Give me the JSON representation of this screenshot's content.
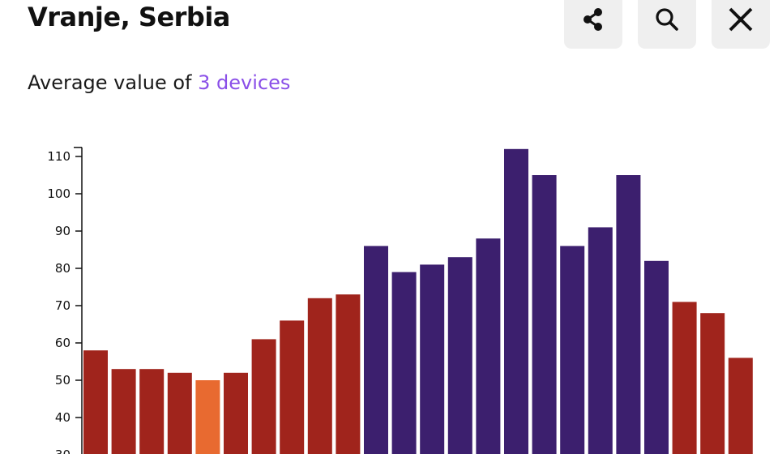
{
  "header": {
    "title": "Vranje, Serbia",
    "subtitle_prefix": "Average value of ",
    "devices_link": "3 devices"
  },
  "actions": [
    {
      "name": "share-button",
      "icon": "share-icon"
    },
    {
      "name": "search-button",
      "icon": "search-icon"
    },
    {
      "name": "close-button",
      "icon": "close-icon"
    }
  ],
  "colors": {
    "purple": "#3c1f6e",
    "red": "#a0241c",
    "orange": "#e86a30",
    "link": "#8a4fe8",
    "button_bg": "#efefef"
  },
  "chart_data": {
    "type": "bar",
    "yticks": [
      30,
      40,
      50,
      60,
      70,
      80,
      90,
      100,
      110
    ],
    "values": [
      58,
      53,
      53,
      52,
      50,
      52,
      61,
      66,
      72,
      73,
      86,
      79,
      81,
      83,
      88,
      112,
      105,
      86,
      91,
      105,
      82,
      71,
      68,
      56
    ],
    "bar_colors": [
      "red",
      "red",
      "red",
      "red",
      "orange",
      "red",
      "red",
      "red",
      "red",
      "red",
      "purple",
      "purple",
      "purple",
      "purple",
      "purple",
      "purple",
      "purple",
      "purple",
      "purple",
      "purple",
      "purple",
      "red",
      "red",
      "red"
    ],
    "ylim": [
      30,
      112
    ],
    "grid": false
  }
}
